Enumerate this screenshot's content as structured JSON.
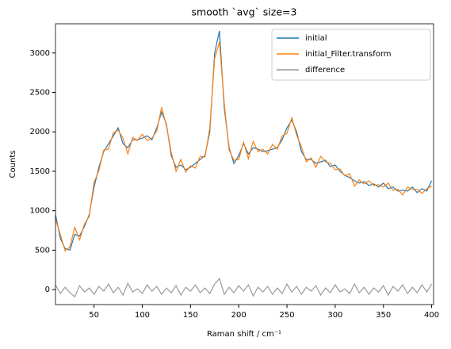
{
  "chart_data": {
    "type": "line",
    "title": "smooth `avg` size=3",
    "x_label": "Raman shift / cm⁻¹",
    "y_label": "Counts",
    "x": [
      10,
      15,
      20,
      25,
      30,
      35,
      40,
      45,
      50,
      55,
      60,
      65,
      70,
      75,
      80,
      85,
      90,
      95,
      100,
      105,
      110,
      115,
      120,
      125,
      130,
      135,
      140,
      145,
      150,
      155,
      160,
      165,
      170,
      175,
      180,
      185,
      190,
      195,
      200,
      205,
      210,
      215,
      220,
      225,
      230,
      235,
      240,
      245,
      250,
      255,
      260,
      265,
      270,
      275,
      280,
      285,
      290,
      295,
      300,
      305,
      310,
      315,
      320,
      325,
      330,
      335,
      340,
      345,
      350,
      355,
      360,
      365,
      370,
      375,
      380,
      385,
      390,
      395,
      400
    ],
    "series": [
      {
        "name": "initial",
        "color": "#1f77b4",
        "values": [
          950,
          650,
          520,
          500,
          700,
          680,
          800,
          950,
          1300,
          1550,
          1750,
          1850,
          1950,
          2050,
          1850,
          1800,
          1900,
          1900,
          1920,
          1950,
          1900,
          2050,
          2250,
          2100,
          1700,
          1550,
          1580,
          1520,
          1550,
          1600,
          1650,
          1700,
          2000,
          3000,
          3280,
          2300,
          1800,
          1600,
          1700,
          1850,
          1720,
          1800,
          1780,
          1750,
          1760,
          1780,
          1800,
          1900,
          2050,
          2150,
          2000,
          1750,
          1650,
          1650,
          1600,
          1620,
          1640,
          1560,
          1580,
          1500,
          1450,
          1420,
          1380,
          1350,
          1370,
          1320,
          1340,
          1300,
          1350,
          1280,
          1300,
          1250,
          1260,
          1250,
          1300,
          1230,
          1280,
          1250,
          1380
        ]
      },
      {
        "name": "initial_Filter.transform",
        "color": "#ff7f0e",
        "values": [
          890,
          700,
          490,
          540,
          790,
          630,
          830,
          930,
          1360,
          1510,
          1770,
          1780,
          1990,
          2020,
          1920,
          1720,
          1930,
          1890,
          1970,
          1890,
          1920,
          2010,
          2310,
          2080,
          1740,
          1500,
          1650,
          1490,
          1570,
          1540,
          1690,
          1680,
          2050,
          2930,
          3140,
          2360,
          1770,
          1640,
          1650,
          1870,
          1660,
          1880,
          1750,
          1780,
          1720,
          1840,
          1780,
          1950,
          1980,
          2180,
          1960,
          1810,
          1620,
          1670,
          1550,
          1690,
          1620,
          1600,
          1520,
          1530,
          1440,
          1470,
          1310,
          1390,
          1340,
          1380,
          1320,
          1330,
          1300,
          1350,
          1260,
          1270,
          1200,
          1300,
          1270,
          1270,
          1220,
          1280,
          1310
        ]
      },
      {
        "name": "difference",
        "color": "#999999",
        "values": [
          60,
          -50,
          30,
          -40,
          -90,
          50,
          -30,
          20,
          -60,
          40,
          -20,
          70,
          -40,
          30,
          -70,
          80,
          -30,
          10,
          -50,
          60,
          -20,
          40,
          -60,
          20,
          -40,
          50,
          -70,
          30,
          -20,
          60,
          -40,
          20,
          -50,
          70,
          140,
          -60,
          30,
          -40,
          50,
          -20,
          60,
          -80,
          30,
          -30,
          40,
          -60,
          20,
          -50,
          70,
          -30,
          40,
          -60,
          30,
          -20,
          50,
          -70,
          20,
          -40,
          60,
          -30,
          10,
          -50,
          70,
          -40,
          30,
          -60,
          20,
          -30,
          50,
          -70,
          40,
          -20,
          60,
          -50,
          30,
          -40,
          60,
          -30,
          70
        ]
      }
    ],
    "xlim": [
      10,
      402
    ],
    "ylim": [
      -190,
      3370
    ],
    "xticks": [
      50,
      100,
      150,
      200,
      250,
      300,
      350,
      400
    ],
    "yticks": [
      0,
      500,
      1000,
      1500,
      2000,
      2500,
      3000
    ],
    "legend": "upper right"
  }
}
